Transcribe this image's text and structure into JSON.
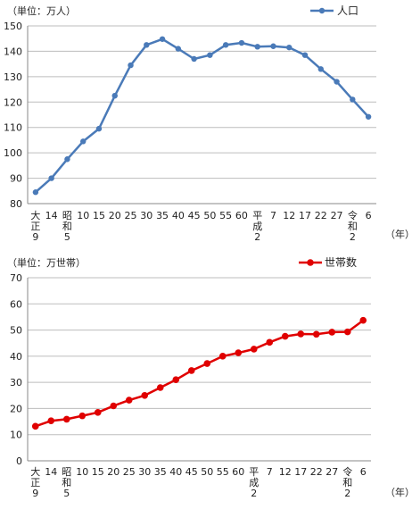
{
  "chart_data": [
    {
      "type": "line",
      "unit_label": "（単位：万人）",
      "year_label": "（年）",
      "categories": [
        [
          "大",
          "正",
          "9"
        ],
        [
          "14"
        ],
        [
          "昭",
          "和",
          "5"
        ],
        [
          "10"
        ],
        [
          "15"
        ],
        [
          "20"
        ],
        [
          "25"
        ],
        [
          "30"
        ],
        [
          "35"
        ],
        [
          "40"
        ],
        [
          "45"
        ],
        [
          "50"
        ],
        [
          "55"
        ],
        [
          "60"
        ],
        [
          "平",
          "成",
          "2"
        ],
        [
          "7"
        ],
        [
          "12"
        ],
        [
          "17"
        ],
        [
          "22"
        ],
        [
          "27"
        ],
        [
          "令",
          "和",
          "2"
        ],
        [
          "6"
        ]
      ],
      "series": [
        {
          "name": "人口",
          "color": "#4a7ab8",
          "values": [
            84.5,
            90,
            97.5,
            104.5,
            109.5,
            122.5,
            134.5,
            142.5,
            144.8,
            141,
            137,
            138.5,
            142.5,
            143.3,
            141.8,
            142,
            141.5,
            138.5,
            133,
            128,
            121,
            114.2
          ]
        }
      ],
      "ylim": [
        80,
        150
      ],
      "yticks": [
        80,
        90,
        100,
        110,
        120,
        130,
        140,
        150
      ],
      "legend": "top-right",
      "grid": true
    },
    {
      "type": "line",
      "unit_label": "（単位：万世帯）",
      "year_label": "（年）",
      "categories": [
        [
          "大",
          "正",
          "9"
        ],
        [
          "14"
        ],
        [
          "昭",
          "和",
          "5"
        ],
        [
          "10"
        ],
        [
          "15"
        ],
        [
          "20"
        ],
        [
          "25"
        ],
        [
          "30"
        ],
        [
          "35"
        ],
        [
          "40"
        ],
        [
          "45"
        ],
        [
          "50"
        ],
        [
          "55"
        ],
        [
          "60"
        ],
        [
          "平",
          "成",
          "2"
        ],
        [
          "7"
        ],
        [
          "12"
        ],
        [
          "17"
        ],
        [
          "22"
        ],
        [
          "27"
        ],
        [
          "令",
          "和",
          "2"
        ],
        [
          "6"
        ]
      ],
      "series": [
        {
          "name": "世帯数",
          "color": "#e00000",
          "values": [
            13.2,
            15.3,
            15.9,
            17.2,
            18.5,
            21,
            23.2,
            25,
            28,
            31,
            34.5,
            37.2,
            40,
            41.3,
            42.7,
            45.3,
            47.6,
            48.5,
            48.4,
            49.2,
            49.3,
            53.7
          ]
        }
      ],
      "ylim": [
        0,
        70
      ],
      "yticks": [
        0,
        10,
        20,
        30,
        40,
        50,
        60,
        70
      ],
      "legend": "top-right",
      "grid": true
    }
  ]
}
